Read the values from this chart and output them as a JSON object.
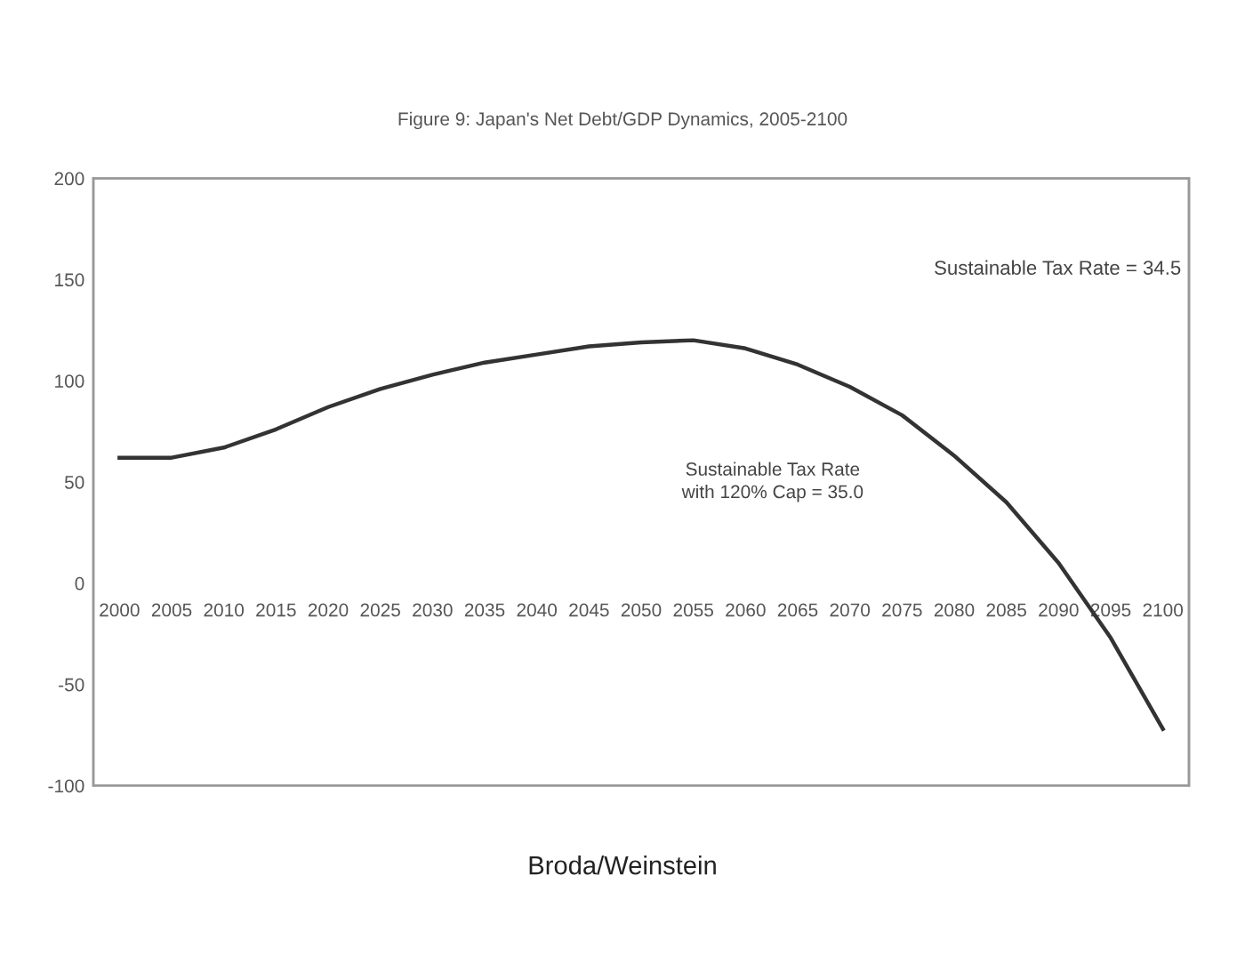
{
  "chart_data": {
    "type": "line",
    "title": "Figure 9: Japan's Net Debt/GDP Dynamics, 2005-2100",
    "categories": [
      "2000",
      "2005",
      "2010",
      "2015",
      "2020",
      "2025",
      "2030",
      "2035",
      "2040",
      "2045",
      "2050",
      "2055",
      "2060",
      "2065",
      "2070",
      "2075",
      "2080",
      "2085",
      "2090",
      "2095",
      "2100"
    ],
    "series": [
      {
        "color": "#333333",
        "values": [
          62,
          62,
          67,
          76,
          87,
          96,
          103,
          109,
          113,
          117,
          119,
          120,
          116,
          108,
          97,
          83,
          63,
          40,
          10,
          -27,
          -72
        ]
      }
    ],
    "ylim": [
      -100,
      200
    ],
    "yticks": [
      -100,
      -50,
      0,
      50,
      100,
      150,
      200
    ],
    "grid": false,
    "legend": false,
    "marker": "none",
    "line_style": "solid",
    "annotations": [
      "Sustainable Tax Rate = 34.5",
      "Sustainable Tax Rate\nwith 120% Cap = 35.0",
      "Broda/Weinstein"
    ]
  }
}
